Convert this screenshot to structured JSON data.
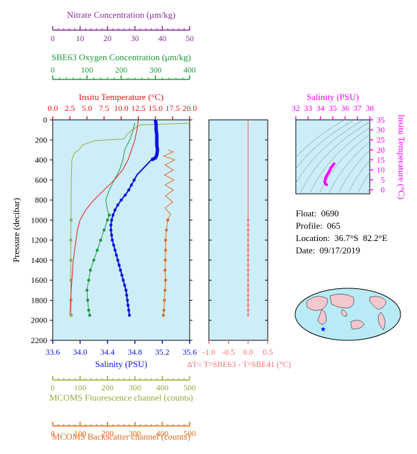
{
  "float_info": {
    "float": "Float:  0690",
    "profile": "Profile:  065",
    "location": "Location:  36.7°S  82.2°E",
    "date": "Date:  09/17/2019"
  },
  "colors": {
    "temperature": "#e8141a",
    "salinity": "#0a14e0",
    "oxygen": "#1a9a3a",
    "nitrate": "#8a2b9a",
    "fluorescence": "#9aa83a",
    "backscatter": "#e06a1a",
    "delta_t": "#f07070",
    "ts_curve": "#ff00ff",
    "panel_bg": "#cdeef8"
  },
  "chart_data": [
    {
      "type": "line",
      "title": "",
      "ylabel": "Pressure (decibar)",
      "ylim": [
        2200,
        0
      ],
      "yticks": [
        "0",
        "200",
        "400",
        "600",
        "800",
        "1000",
        "1200",
        "1400",
        "1600",
        "1800",
        "2000",
        "2200"
      ],
      "axes": {
        "nitrate": {
          "label": "Nitrate Concentration (μm/kg)",
          "ticks": [
            "0",
            "10",
            "20",
            "30",
            "40",
            "50"
          ],
          "range": [
            0,
            50
          ]
        },
        "oxygen": {
          "label": "SBE63 Oxygen Concentration (μm/kg)",
          "ticks": [
            "0",
            "100",
            "200",
            "300",
            "400"
          ],
          "range": [
            0,
            400
          ]
        },
        "temperature": {
          "label": "Insitu Temperature (°C)",
          "ticks": [
            "0.0",
            "2.5",
            "5.0",
            "7.5",
            "10.0",
            "12.5",
            "15.0",
            "17.5",
            "20.0"
          ],
          "range": [
            0,
            20
          ]
        },
        "salinity": {
          "label": "Salinity (PSU)",
          "ticks": [
            "33.6",
            "34.0",
            "34.4",
            "34.8",
            "35.2",
            "35.6"
          ],
          "range": [
            33.6,
            35.6
          ]
        },
        "fluorescence": {
          "label": "MCOMS Fluorescence channel (counts)",
          "ticks": [
            "0",
            "100",
            "200",
            "300",
            "400",
            "500"
          ],
          "range": [
            0,
            500
          ]
        },
        "backscatter": {
          "label": "MCOMS Backscatter channel (counts)",
          "ticks": [
            "0",
            "100",
            "200",
            "300",
            "400",
            "500"
          ],
          "range": [
            0,
            500
          ]
        }
      },
      "series": [
        {
          "key": "temperature",
          "points": [
            [
              12.5,
              0
            ],
            [
              12.3,
              100
            ],
            [
              12.0,
              200
            ],
            [
              11.5,
              300
            ],
            [
              11.0,
              400
            ],
            [
              10.2,
              500
            ],
            [
              9.0,
              600
            ],
            [
              7.5,
              700
            ],
            [
              6.0,
              800
            ],
            [
              4.8,
              900
            ],
            [
              4.0,
              1000
            ],
            [
              3.6,
              1100
            ],
            [
              3.4,
              1200
            ],
            [
              3.2,
              1300
            ],
            [
              3.0,
              1400
            ],
            [
              2.9,
              1500
            ],
            [
              2.8,
              1600
            ],
            [
              2.7,
              1700
            ],
            [
              2.6,
              1800
            ],
            [
              2.55,
              1900
            ],
            [
              2.5,
              1950
            ]
          ]
        },
        {
          "key": "salinity",
          "points": [
            [
              35.1,
              0
            ],
            [
              35.11,
              50
            ],
            [
              35.11,
              100
            ],
            [
              35.12,
              150
            ],
            [
              35.12,
              200
            ],
            [
              35.12,
              250
            ],
            [
              35.13,
              300
            ],
            [
              35.12,
              350
            ],
            [
              35.1,
              380
            ],
            [
              35.04,
              400
            ],
            [
              34.97,
              450
            ],
            [
              34.9,
              500
            ],
            [
              34.83,
              550
            ],
            [
              34.79,
              600
            ],
            [
              34.75,
              650
            ],
            [
              34.71,
              700
            ],
            [
              34.66,
              750
            ],
            [
              34.6,
              800
            ],
            [
              34.55,
              850
            ],
            [
              34.51,
              900
            ],
            [
              34.48,
              950
            ],
            [
              34.46,
              1000
            ],
            [
              34.45,
              1050
            ],
            [
              34.45,
              1100
            ],
            [
              34.46,
              1150
            ],
            [
              34.47,
              1200
            ],
            [
              34.49,
              1250
            ],
            [
              34.51,
              1300
            ],
            [
              34.53,
              1350
            ],
            [
              34.55,
              1400
            ],
            [
              34.57,
              1450
            ],
            [
              34.59,
              1500
            ],
            [
              34.61,
              1550
            ],
            [
              34.63,
              1600
            ],
            [
              34.65,
              1650
            ],
            [
              34.67,
              1700
            ],
            [
              34.68,
              1750
            ],
            [
              34.69,
              1800
            ],
            [
              34.7,
              1850
            ],
            [
              34.71,
              1900
            ],
            [
              34.72,
              1950
            ]
          ]
        },
        {
          "key": "oxygen",
          "points": [
            [
              240,
              30
            ],
            [
              235,
              100
            ],
            [
              225,
              200
            ],
            [
              210,
              300
            ],
            [
              205,
              400
            ],
            [
              195,
              500
            ],
            [
              180,
              600
            ],
            [
              165,
              700
            ],
            [
              155,
              800
            ],
            [
              160,
              900
            ],
            [
              165,
              950
            ],
            [
              160,
              1000
            ],
            [
              150,
              1100
            ],
            [
              140,
              1200
            ],
            [
              130,
              1300
            ],
            [
              120,
              1400
            ],
            [
              110,
              1500
            ],
            [
              105,
              1600
            ],
            [
              100,
              1700
            ],
            [
              102,
              1800
            ],
            [
              105,
              1900
            ],
            [
              108,
              1950
            ]
          ]
        },
        {
          "key": "nitrate",
          "points": []
        },
        {
          "key": "fluorescence",
          "points": [
            [
              560,
              30
            ],
            [
              430,
              40
            ],
            [
              320,
              50
            ],
            [
              290,
              100
            ],
            [
              270,
              150
            ],
            [
              260,
              190
            ],
            [
              200,
              200
            ],
            [
              150,
              210
            ],
            [
              140,
              220
            ],
            [
              110,
              250
            ],
            [
              95,
              300
            ],
            [
              80,
              330
            ],
            [
              75,
              360
            ],
            [
              70,
              400
            ],
            [
              68,
              600
            ],
            [
              67,
              800
            ],
            [
              67,
              1000
            ],
            [
              66,
              1200
            ],
            [
              66,
              1400
            ],
            [
              66,
              1600
            ],
            [
              67,
              1800
            ],
            [
              68,
              1950
            ]
          ]
        },
        {
          "key": "backscatter",
          "points": [
            [
              420,
              300
            ],
            [
              440,
              320
            ],
            [
              405,
              360
            ],
            [
              445,
              400
            ],
            [
              410,
              450
            ],
            [
              440,
              500
            ],
            [
              408,
              550
            ],
            [
              442,
              600
            ],
            [
              410,
              650
            ],
            [
              440,
              700
            ],
            [
              412,
              760
            ],
            [
              438,
              820
            ],
            [
              410,
              880
            ],
            [
              430,
              940
            ],
            [
              420,
              1000
            ],
            [
              415,
              1100
            ],
            [
              412,
              1200
            ],
            [
              412,
              1300
            ],
            [
              411,
              1400
            ],
            [
              410,
              1500
            ],
            [
              412,
              1600
            ],
            [
              410,
              1700
            ],
            [
              408,
              1800
            ],
            [
              406,
              1900
            ],
            [
              404,
              1950
            ]
          ]
        }
      ]
    },
    {
      "type": "line",
      "title": "",
      "xlabel": "ΔT= T^SBE63 - T^SBE41 (°C)",
      "xticks": [
        "-1.0",
        "-0.5",
        "0.0",
        "0.5"
      ],
      "xlim": [
        -1.0,
        0.5
      ],
      "ylim": [
        2200,
        0
      ],
      "series": [
        {
          "key": "delta_t",
          "points": [
            [
              0.0,
              0
            ],
            [
              0.0,
              1000
            ],
            [
              0.0,
              1950
            ]
          ]
        }
      ]
    },
    {
      "type": "line",
      "title": "",
      "xlabel": "Salinity (PSU)",
      "ylabel": "Insitu Temperature (°C)",
      "xticks": [
        "32",
        "33",
        "34",
        "35",
        "36",
        "37",
        "38"
      ],
      "yticks": [
        "0",
        "5",
        "10",
        "15",
        "20",
        "25",
        "30",
        "35"
      ],
      "xlim": [
        32,
        38
      ],
      "ylim": [
        -2,
        35
      ],
      "series": [
        {
          "key": "ts_curve",
          "points": [
            [
              34.5,
              2.5
            ],
            [
              34.4,
              3.0
            ],
            [
              34.35,
              4.0
            ],
            [
              34.4,
              5.5
            ],
            [
              34.5,
              7.0
            ],
            [
              34.7,
              9.0
            ],
            [
              34.85,
              11.0
            ],
            [
              35.0,
              12.2
            ],
            [
              35.1,
              13.0
            ]
          ]
        }
      ]
    }
  ]
}
